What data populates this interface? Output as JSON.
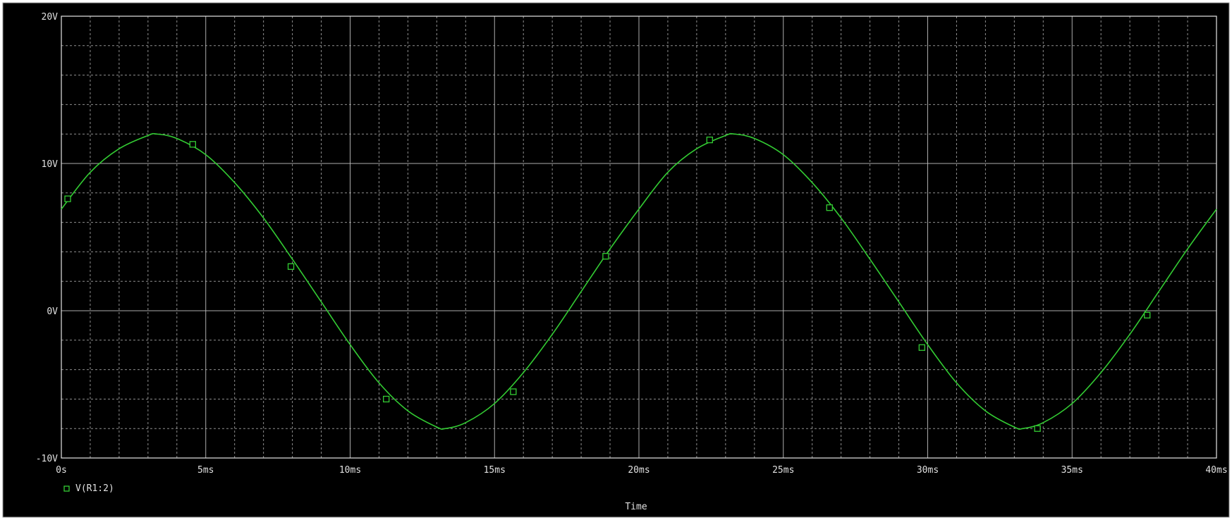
{
  "colors": {
    "background": "#000000",
    "frame": "#e6e6e6",
    "grid": "#bfbfbf",
    "trace": "#33cc33",
    "text": "#e0e0e0"
  },
  "chart_data": {
    "type": "line",
    "title": "",
    "xlabel": "Time",
    "ylabel": "",
    "xlim": [
      0,
      40
    ],
    "ylim": [
      -10,
      20
    ],
    "x_unit": "ms",
    "y_unit": "V",
    "x_ticks": [
      0,
      5,
      10,
      15,
      20,
      25,
      30,
      35,
      40
    ],
    "x_tick_labels": [
      "0s",
      "5ms",
      "10ms",
      "15ms",
      "20ms",
      "25ms",
      "30ms",
      "35ms",
      "40ms"
    ],
    "y_ticks": [
      -10,
      0,
      10,
      20
    ],
    "y_tick_labels": [
      "-10V",
      "0V",
      "10V",
      "20V"
    ],
    "grid": true,
    "legend_position": "bottom-left",
    "series": [
      {
        "name": "V(R1:2)",
        "color": "#33cc33",
        "marker": "square",
        "marker_x": [
          0.22,
          4.55,
          7.95,
          11.25,
          15.65,
          18.85,
          22.45,
          26.6,
          29.8,
          33.8,
          37.6
        ],
        "marker_y": [
          7.6,
          11.3,
          3.0,
          -6.0,
          -5.5,
          3.7,
          11.6,
          7.0,
          -2.5,
          -8.0,
          -0.3
        ],
        "x": [
          0,
          1,
          2,
          3,
          3.3,
          4,
          5,
          6,
          7,
          8,
          9,
          10,
          11,
          12,
          13,
          13.3,
          14,
          15,
          16,
          17,
          18,
          19,
          20,
          21,
          22,
          23,
          23.3,
          24,
          25,
          26,
          27,
          28,
          29,
          30,
          31,
          32,
          33,
          33.3,
          34,
          35,
          36,
          37,
          38,
          39,
          40
        ],
        "y": [
          6.9,
          9.4,
          11.0,
          11.9,
          12.0,
          11.7,
          10.6,
          8.7,
          6.3,
          3.5,
          0.6,
          -2.3,
          -4.9,
          -6.8,
          -7.9,
          -8.0,
          -7.6,
          -6.3,
          -4.2,
          -1.6,
          1.3,
          4.2,
          6.9,
          9.4,
          11.0,
          11.9,
          12.0,
          11.7,
          10.6,
          8.7,
          6.3,
          3.5,
          0.6,
          -2.3,
          -4.9,
          -6.8,
          -7.9,
          -8.0,
          -7.6,
          -6.3,
          -4.2,
          -1.6,
          1.3,
          4.2,
          6.9
        ]
      }
    ]
  }
}
